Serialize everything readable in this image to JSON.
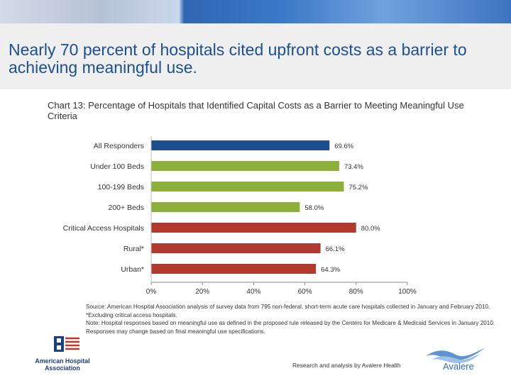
{
  "slide": {
    "title": "Nearly 70 percent of hospitals cited upfront costs as a barrier to achieving meaningful use.",
    "chart_subtitle": "Chart 13: Percentage of Hospitals that Identified Capital Costs as a Barrier to Meeting Meaningful Use Criteria",
    "source_line1": "Source:  American Hospital Association analysis of survey data from 795 non-federal, short-term acute care hospitals collected in January and February 2010. *Excluding critical access hospitals.",
    "source_line2": "Note: Hospital responses based on meaningful use as defined in the proposed rule released by the Centers for Medicare & Medicaid Services in January 2010. Responses may change based on final meaningful use specifications.",
    "credit": "Research and analysis by Avalere Health",
    "aha_logo_text": "American Hospital Association",
    "avalere_logo_text": "Avalere"
  },
  "colors": {
    "title": "#1d4f8f",
    "all_responders": "#1f4e8c",
    "bed_size": "#8db03a",
    "location": "#b03a2e"
  },
  "chart_data": {
    "type": "bar",
    "orientation": "horizontal",
    "categories": [
      "All Responders",
      "Under 100 Beds",
      "100-199 Beds",
      "200+ Beds",
      "Critical Access Hospitals",
      "Rural*",
      "Urban*"
    ],
    "values": [
      69.6,
      73.4,
      75.2,
      58.0,
      80.0,
      66.1,
      64.3
    ],
    "data_labels": [
      "69.6%",
      "73.4%",
      "75.2%",
      "58.0%",
      "80.0%",
      "66.1%",
      "64.3%"
    ],
    "bar_colors": [
      "#1f4e8c",
      "#8db03a",
      "#8db03a",
      "#8db03a",
      "#b03a2e",
      "#b03a2e",
      "#b03a2e"
    ],
    "xlim": [
      0,
      100
    ],
    "xticks": [
      "0%",
      "20%",
      "40%",
      "60%",
      "80%",
      "100%"
    ],
    "grid": false
  }
}
